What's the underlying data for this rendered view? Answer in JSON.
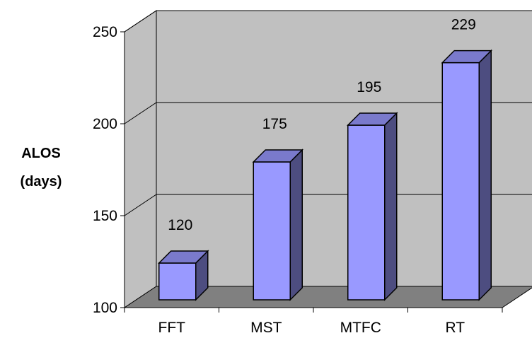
{
  "chart_data": {
    "type": "bar",
    "style": "3d-column",
    "categories": [
      "FFT",
      "MST",
      "MTFC",
      "RT"
    ],
    "values": [
      120,
      175,
      195,
      229
    ],
    "data_labels": [
      "120",
      "175",
      "195",
      "229"
    ],
    "title": "",
    "xlabel": "",
    "ylabel_lines": [
      "ALOS",
      "(days)"
    ],
    "ylim": [
      100,
      250
    ],
    "yticks": [
      100,
      150,
      200,
      250
    ],
    "ytick_labels": [
      "100",
      "150",
      "200",
      "250"
    ],
    "grid": true,
    "legend": "none",
    "colors": {
      "bar_front": "#9999ff",
      "bar_side": "#4d4d80",
      "bar_top": "#7a7acc",
      "back_wall": "#c0c0c0",
      "side_wall": "#c0c0c0",
      "floor": "#808080",
      "gridline": "#000000"
    }
  }
}
